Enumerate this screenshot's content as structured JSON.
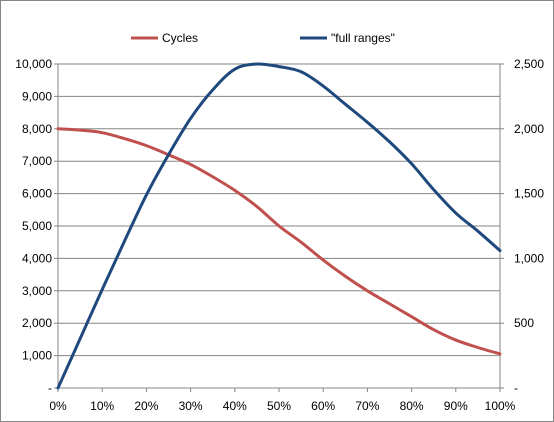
{
  "chart_data": {
    "type": "line",
    "title": "",
    "xlabel": "",
    "ylabel": "",
    "x": [
      0,
      5,
      10,
      15,
      20,
      25,
      30,
      35,
      40,
      45,
      50,
      55,
      60,
      65,
      70,
      75,
      80,
      85,
      90,
      95,
      100
    ],
    "x_tick_labels": [
      "0%",
      "10%",
      "20%",
      "30%",
      "40%",
      "50%",
      "60%",
      "70%",
      "80%",
      "90%",
      "100%"
    ],
    "xlim": [
      0,
      100
    ],
    "y_left": {
      "lim": [
        0,
        10000
      ],
      "tick_labels": [
        "-",
        "1,000",
        "2,000",
        "3,000",
        "4,000",
        "5,000",
        "6,000",
        "7,000",
        "8,000",
        "9,000",
        "10,000"
      ]
    },
    "y_right": {
      "lim": [
        0,
        2500
      ],
      "tick_labels": [
        "-",
        "500",
        "1,000",
        "1,500",
        "2,000",
        "2,500"
      ]
    },
    "grid": "horizontal",
    "legend_position": "top",
    "series": [
      {
        "name": "Cycles",
        "axis": "left",
        "color": "#C0504D",
        "values": [
          8000,
          7960,
          7880,
          7700,
          7480,
          7200,
          6900,
          6520,
          6100,
          5600,
          5000,
          4500,
          3950,
          3450,
          3000,
          2600,
          2200,
          1800,
          1480,
          1250,
          1050
        ]
      },
      {
        "name": "\"full ranges\"",
        "axis": "right",
        "color": "#1F497D",
        "values": [
          0,
          380,
          760,
          1130,
          1490,
          1800,
          2080,
          2300,
          2460,
          2500,
          2480,
          2440,
          2330,
          2190,
          2050,
          1900,
          1730,
          1530,
          1350,
          1210,
          1060
        ]
      }
    ]
  }
}
